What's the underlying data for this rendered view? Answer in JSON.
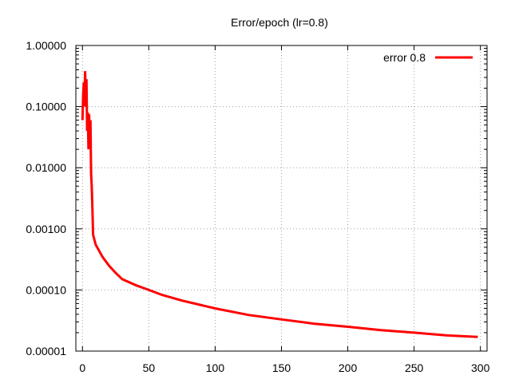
{
  "chart_data": {
    "type": "line",
    "title": "Error/epoch (lr=0.8)",
    "xlabel": "",
    "ylabel": "",
    "xlim": [
      -5,
      305
    ],
    "ylim": [
      1e-05,
      1
    ],
    "y_scale": "log",
    "grid": true,
    "legend_position": "top-right",
    "x_ticks": [
      0,
      50,
      100,
      150,
      200,
      250,
      300
    ],
    "x_tick_labels": [
      "0",
      "50",
      "100",
      "150",
      "200",
      "250",
      "300"
    ],
    "y_ticks": [
      1,
      0.1,
      0.01,
      0.001,
      0.0001,
      1e-05
    ],
    "y_tick_labels": [
      "1.00000",
      "0.10000",
      "0.01000",
      "0.00100",
      "0.00010",
      "0.00001"
    ],
    "series": [
      {
        "name": "error 0.8",
        "color": "#ff0000",
        "x": [
          0,
          0.5,
          1,
          1.5,
          2,
          2.5,
          3,
          3.5,
          4,
          4.5,
          5,
          5.5,
          6,
          6.5,
          7,
          7.5,
          8,
          10,
          15,
          20,
          25,
          30,
          40,
          50,
          60,
          75,
          100,
          125,
          150,
          175,
          200,
          225,
          250,
          275,
          298
        ],
        "y": [
          0.06,
          0.15,
          0.25,
          0.1,
          0.38,
          0.13,
          0.28,
          0.04,
          0.08,
          0.02,
          0.075,
          0.03,
          0.06,
          0.008,
          0.005,
          0.002,
          0.0008,
          0.00055,
          0.00035,
          0.00025,
          0.00019,
          0.00015,
          0.00012,
          0.0001,
          8.3e-05,
          6.7e-05,
          5e-05,
          3.9e-05,
          3.3e-05,
          2.8e-05,
          2.5e-05,
          2.2e-05,
          2e-05,
          1.8e-05,
          1.7e-05
        ]
      }
    ]
  }
}
